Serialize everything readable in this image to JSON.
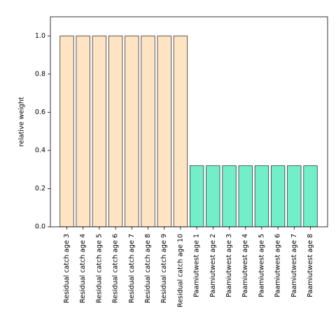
{
  "chart_data": {
    "type": "bar",
    "title": "",
    "xlabel": "",
    "ylabel": "relative weight",
    "ylim": [
      0,
      1.1
    ],
    "yticks": [
      0.0,
      0.2,
      0.4,
      0.6,
      0.8,
      1.0
    ],
    "ytick_labels": [
      "0.0",
      "0.2",
      "0.4",
      "0.6",
      "0.8",
      "1.0"
    ],
    "grid": false,
    "legend": "none",
    "categories": [
      "Residual catch age 3",
      "Residual catch age 4",
      "Residual catch age 5",
      "Residual catch age 6",
      "Residual catch age 7",
      "Residual catch age 8",
      "Residual catch age 9",
      "Residual catch age 10",
      "Paamiutwest age 1",
      "Paamiutwest age 2",
      "Paamiutwest age 3",
      "Paamiutwest age 4",
      "Paamiutwest age 5",
      "Paamiutwest age 6",
      "Paamiutwest age 7",
      "Paamiutwest age 8"
    ],
    "values": [
      1.0,
      1.0,
      1.0,
      1.0,
      1.0,
      1.0,
      1.0,
      1.0,
      0.32,
      0.32,
      0.32,
      0.32,
      0.32,
      0.32,
      0.32,
      0.32
    ],
    "bar_colors": [
      "#ffe4c4",
      "#ffe4c4",
      "#ffe4c4",
      "#ffe4c4",
      "#ffe4c4",
      "#ffe4c4",
      "#ffe4c4",
      "#ffe4c4",
      "#72efc8",
      "#72efc8",
      "#72efc8",
      "#72efc8",
      "#72efc8",
      "#72efc8",
      "#72efc8",
      "#72efc8"
    ],
    "edge_color": "#333333"
  }
}
